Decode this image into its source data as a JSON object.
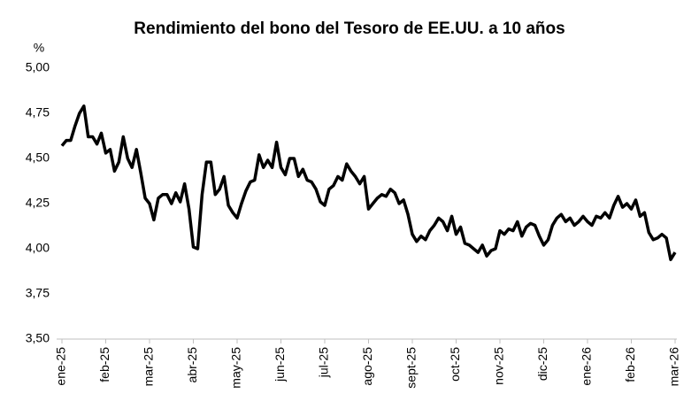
{
  "chart_data": {
    "type": "line",
    "title": "Rendimiento del bono del Tesoro de EE.UU. a 10 años",
    "y_label": "%",
    "color": "#000000",
    "categories": [
      "ene-25",
      null,
      null,
      null,
      null,
      null,
      null,
      null,
      null,
      null,
      "feb-25",
      null,
      null,
      null,
      null,
      null,
      null,
      null,
      null,
      null,
      "mar-25",
      null,
      null,
      null,
      null,
      null,
      null,
      null,
      null,
      null,
      "abr-25",
      null,
      null,
      null,
      null,
      null,
      null,
      null,
      null,
      null,
      "may-25",
      null,
      null,
      null,
      null,
      null,
      null,
      null,
      null,
      null,
      "jun-25",
      null,
      null,
      null,
      null,
      null,
      null,
      null,
      null,
      null,
      "jul-25",
      null,
      null,
      null,
      null,
      null,
      null,
      null,
      null,
      null,
      "ago-25",
      null,
      null,
      null,
      null,
      null,
      null,
      null,
      null,
      null,
      "sept-25",
      null,
      null,
      null,
      null,
      null,
      null,
      null,
      null,
      null,
      "oct-25",
      null,
      null,
      null,
      null,
      null,
      null,
      null,
      null,
      null,
      "nov-25",
      null,
      null,
      null,
      null,
      null,
      null,
      null,
      null,
      null,
      "dic-25",
      null,
      null,
      null,
      null,
      null,
      null,
      null,
      null,
      null,
      "ene-26",
      null,
      null,
      null,
      null,
      null,
      null,
      null,
      null,
      null,
      "feb-26",
      null,
      null,
      null,
      null,
      null,
      null,
      null,
      null,
      null,
      "mar-26"
    ],
    "values": [
      4.57,
      4.6,
      4.6,
      4.68,
      4.75,
      4.79,
      4.62,
      4.62,
      4.58,
      4.64,
      4.53,
      4.55,
      4.43,
      4.48,
      4.62,
      4.5,
      4.45,
      4.55,
      4.42,
      4.28,
      4.25,
      4.16,
      4.28,
      4.3,
      4.3,
      4.25,
      4.31,
      4.26,
      4.36,
      4.22,
      4.01,
      4.0,
      4.3,
      4.48,
      4.48,
      4.3,
      4.33,
      4.4,
      4.24,
      4.2,
      4.17,
      4.25,
      4.32,
      4.37,
      4.38,
      4.52,
      4.45,
      4.49,
      4.45,
      4.59,
      4.45,
      4.41,
      4.5,
      4.5,
      4.4,
      4.44,
      4.38,
      4.37,
      4.33,
      4.26,
      4.24,
      4.33,
      4.35,
      4.4,
      4.38,
      4.47,
      4.43,
      4.4,
      4.36,
      4.4,
      4.22,
      4.25,
      4.28,
      4.3,
      4.29,
      4.33,
      4.31,
      4.25,
      4.27,
      4.19,
      4.08,
      4.04,
      4.07,
      4.05,
      4.1,
      4.13,
      4.17,
      4.15,
      4.1,
      4.18,
      4.08,
      4.12,
      4.03,
      4.02,
      4.0,
      3.98,
      4.02,
      3.96,
      3.99,
      4.0,
      4.1,
      4.08,
      4.11,
      4.1,
      4.15,
      4.07,
      4.12,
      4.14,
      4.13,
      4.07,
      4.02,
      4.05,
      4.13,
      4.17,
      4.19,
      4.15,
      4.17,
      4.13,
      4.15,
      4.18,
      4.15,
      4.13,
      4.18,
      4.17,
      4.2,
      4.17,
      4.24,
      4.29,
      4.23,
      4.25,
      4.22,
      4.27,
      4.18,
      4.2,
      4.09,
      4.05,
      4.06,
      4.08,
      4.06,
      3.94,
      3.98
    ],
    "ylim": [
      3.5,
      5.0
    ],
    "yticks": [
      {
        "value": 3.5,
        "label": "3,50"
      },
      {
        "value": 3.75,
        "label": "3,75"
      },
      {
        "value": 4.0,
        "label": "4,00"
      },
      {
        "value": 4.25,
        "label": "4,25"
      },
      {
        "value": 4.5,
        "label": "4,50"
      },
      {
        "value": 4.75,
        "label": "4,75"
      },
      {
        "value": 5.0,
        "label": "5,00"
      }
    ],
    "grid": false
  }
}
